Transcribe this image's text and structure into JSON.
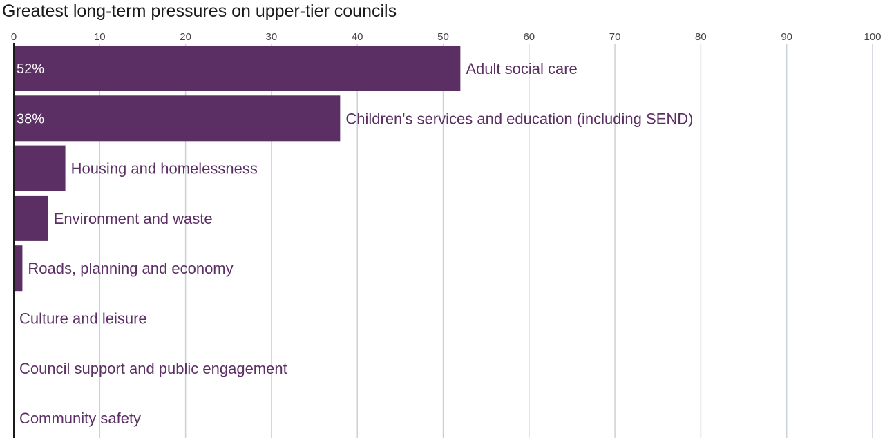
{
  "chart_data": {
    "type": "bar",
    "orientation": "horizontal",
    "title": "Greatest long-term pressures on upper-tier councils",
    "xlabel": "",
    "ylabel": "",
    "xlim": [
      0,
      100
    ],
    "xticks": [
      0,
      10,
      20,
      30,
      40,
      50,
      60,
      70,
      80,
      90,
      100
    ],
    "grid": true,
    "categories": [
      "Adult social care",
      "Children's services and education (including SEND)",
      "Housing and homelessness",
      "Environment and waste",
      "Roads, planning and economy",
      "Culture and leisure",
      "Council support and public engagement",
      "Community safety"
    ],
    "values": [
      52,
      38,
      6,
      4,
      1,
      0,
      0,
      0
    ],
    "data_labels": [
      "52%",
      "38%",
      "",
      "",
      "",
      "",
      "",
      ""
    ]
  },
  "colors": {
    "bar": "#5b2f63",
    "label": "#5b2f63",
    "grid": "#c9d1d9",
    "axis": "#1a1a1a"
  }
}
